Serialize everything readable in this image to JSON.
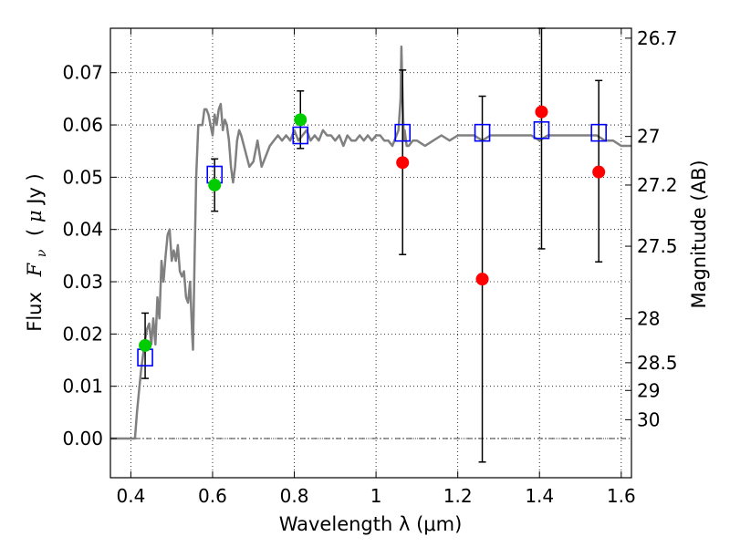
{
  "chart_data": {
    "type": "scatter",
    "title": "",
    "xlabel": "Wavelength  λ (μm)",
    "ylabel_left_prefix": "Flux",
    "ylabel_left_symbol": "F",
    "ylabel_left_subscript": "ν",
    "ylabel_left_unit_open": "( ",
    "ylabel_left_unit_mu": "μ",
    "ylabel_left_unit_rest": "Jy )",
    "ylabel_right": "Magnitude (AB)",
    "xlim": [
      0.35,
      1.625
    ],
    "ylim": [
      -0.0075,
      0.0785
    ],
    "grid": true,
    "x_ticks": [
      {
        "value": 0.4,
        "label": "0.4"
      },
      {
        "value": 0.6,
        "label": "0.6"
      },
      {
        "value": 0.8,
        "label": "0.8"
      },
      {
        "value": 1.0,
        "label": "1"
      },
      {
        "value": 1.2,
        "label": "1.2"
      },
      {
        "value": 1.4,
        "label": "1.4"
      },
      {
        "value": 1.6,
        "label": "1.6"
      }
    ],
    "y_ticks": [
      {
        "value": 0.0,
        "label": "0.00"
      },
      {
        "value": 0.01,
        "label": "0.01"
      },
      {
        "value": 0.02,
        "label": "0.02"
      },
      {
        "value": 0.03,
        "label": "0.03"
      },
      {
        "value": 0.04,
        "label": "0.04"
      },
      {
        "value": 0.05,
        "label": "0.05"
      },
      {
        "value": 0.06,
        "label": "0.06"
      },
      {
        "value": 0.07,
        "label": "0.07"
      }
    ],
    "magnitude_ticks": [
      {
        "flux": 0.0766,
        "label": "26.7"
      },
      {
        "flux": 0.0578,
        "label": "27"
      },
      {
        "flux": 0.0485,
        "label": "27.2"
      },
      {
        "flux": 0.0368,
        "label": "27.5"
      },
      {
        "flux": 0.0229,
        "label": "28"
      },
      {
        "flux": 0.0145,
        "label": "28.5"
      },
      {
        "flux": 0.0092,
        "label": "29"
      },
      {
        "flux": 0.0036,
        "label": "30"
      }
    ],
    "model_spectrum": {
      "color": "#808080",
      "x": [
        0.35,
        0.41,
        0.415,
        0.42,
        0.425,
        0.43,
        0.435,
        0.44,
        0.445,
        0.45,
        0.455,
        0.46,
        0.465,
        0.47,
        0.475,
        0.48,
        0.485,
        0.49,
        0.495,
        0.5,
        0.505,
        0.51,
        0.515,
        0.52,
        0.525,
        0.53,
        0.535,
        0.54,
        0.545,
        0.55,
        0.552,
        0.556,
        0.56,
        0.565,
        0.57,
        0.575,
        0.58,
        0.585,
        0.59,
        0.595,
        0.6,
        0.605,
        0.61,
        0.615,
        0.62,
        0.625,
        0.63,
        0.635,
        0.64,
        0.645,
        0.65,
        0.655,
        0.66,
        0.665,
        0.67,
        0.68,
        0.69,
        0.7,
        0.71,
        0.72,
        0.73,
        0.74,
        0.75,
        0.76,
        0.77,
        0.78,
        0.79,
        0.8,
        0.81,
        0.82,
        0.83,
        0.84,
        0.85,
        0.86,
        0.87,
        0.88,
        0.89,
        0.9,
        0.91,
        0.92,
        0.93,
        0.94,
        0.95,
        0.96,
        0.97,
        0.98,
        0.99,
        1.0,
        1.01,
        1.02,
        1.03,
        1.04,
        1.05,
        1.055,
        1.06,
        1.062,
        1.065,
        1.068,
        1.07,
        1.075,
        1.08,
        1.09,
        1.1,
        1.12,
        1.14,
        1.16,
        1.18,
        1.2,
        1.22,
        1.24,
        1.26,
        1.28,
        1.3,
        1.32,
        1.34,
        1.36,
        1.38,
        1.4,
        1.42,
        1.44,
        1.46,
        1.48,
        1.5,
        1.52,
        1.54,
        1.56,
        1.58,
        1.6,
        1.625
      ],
      "y": [
        0.0,
        0.0,
        0.005,
        0.009,
        0.013,
        0.016,
        0.019,
        0.021,
        0.022,
        0.018,
        0.023,
        0.018,
        0.027,
        0.023,
        0.034,
        0.03,
        0.035,
        0.039,
        0.04,
        0.034,
        0.036,
        0.034,
        0.037,
        0.032,
        0.031,
        0.032,
        0.027,
        0.026,
        0.03,
        0.02,
        0.017,
        0.035,
        0.05,
        0.06,
        0.06,
        0.06,
        0.063,
        0.063,
        0.062,
        0.06,
        0.058,
        0.062,
        0.06,
        0.063,
        0.064,
        0.059,
        0.061,
        0.06,
        0.057,
        0.052,
        0.049,
        0.052,
        0.057,
        0.059,
        0.058,
        0.055,
        0.052,
        0.053,
        0.057,
        0.052,
        0.054,
        0.056,
        0.057,
        0.058,
        0.057,
        0.058,
        0.057,
        0.059,
        0.057,
        0.058,
        0.059,
        0.057,
        0.058,
        0.057,
        0.059,
        0.058,
        0.058,
        0.057,
        0.058,
        0.056,
        0.058,
        0.057,
        0.057,
        0.058,
        0.057,
        0.058,
        0.057,
        0.058,
        0.058,
        0.057,
        0.057,
        0.056,
        0.058,
        0.059,
        0.065,
        0.075,
        0.065,
        0.057,
        0.059,
        0.056,
        0.056,
        0.057,
        0.057,
        0.056,
        0.057,
        0.058,
        0.057,
        0.058,
        0.058,
        0.058,
        0.057,
        0.058,
        0.058,
        0.058,
        0.058,
        0.058,
        0.058,
        0.057,
        0.058,
        0.058,
        0.058,
        0.058,
        0.058,
        0.058,
        0.058,
        0.057,
        0.057,
        0.056,
        0.056
      ]
    },
    "series": [
      {
        "marker": "square",
        "color": "#0000ff",
        "points": [
          {
            "x": 0.435,
            "y": 0.0155
          },
          {
            "x": 0.605,
            "y": 0.0505
          },
          {
            "x": 0.815,
            "y": 0.058
          },
          {
            "x": 1.065,
            "y": 0.0585
          },
          {
            "x": 1.26,
            "y": 0.0585
          },
          {
            "x": 1.405,
            "y": 0.059
          },
          {
            "x": 1.545,
            "y": 0.0585
          }
        ]
      },
      {
        "marker": "circle",
        "color": "#00cc00",
        "points": [
          {
            "x": 0.435,
            "y": 0.0178,
            "ylo": 0.0115,
            "yhi": 0.024
          },
          {
            "x": 0.605,
            "y": 0.0485,
            "ylo": 0.0435,
            "yhi": 0.0535
          },
          {
            "x": 0.815,
            "y": 0.061,
            "ylo": 0.0555,
            "yhi": 0.0665
          }
        ]
      },
      {
        "marker": "circle",
        "color": "#ff0000",
        "points": [
          {
            "x": 1.065,
            "y": 0.0528,
            "ylo": 0.0352,
            "yhi": 0.0705
          },
          {
            "x": 1.26,
            "y": 0.0305,
            "ylo": -0.0045,
            "yhi": 0.0655
          },
          {
            "x": 1.405,
            "y": 0.0625,
            "ylo": 0.0363,
            "yhi": 0.0785
          },
          {
            "x": 1.545,
            "y": 0.051,
            "ylo": 0.0338,
            "yhi": 0.0685
          }
        ]
      }
    ]
  }
}
